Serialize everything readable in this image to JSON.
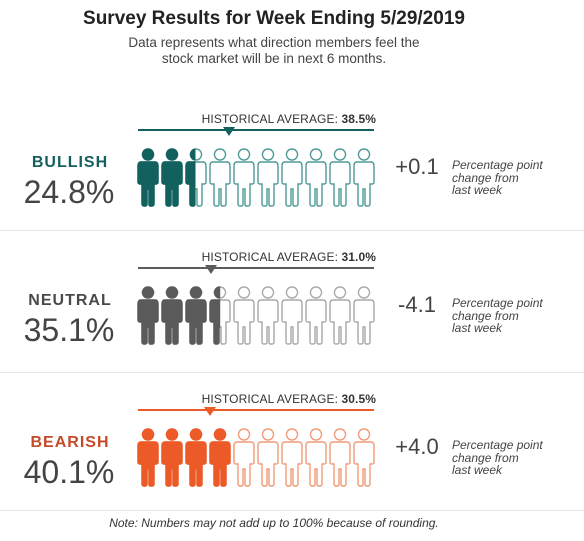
{
  "header": {
    "title": "Survey Results for Week Ending 5/29/2019",
    "subtitle_line1": "Data represents what direction members feel the",
    "subtitle_line2": "stock market will be in next 6 months."
  },
  "footnote": "Note: Numbers may not add up to 100% because of rounding.",
  "chart_data": {
    "type": "pictograph",
    "title": "Survey Results for Week Ending 5/29/2019",
    "icons_per_row": 10,
    "series": [
      {
        "name": "BULLISH",
        "value": 24.8,
        "value_label": "24.8%",
        "historical_average": 38.5,
        "historical_label": "HISTORICAL AVERAGE:",
        "historical_value_label": "38.5%",
        "change": 0.1,
        "change_label": "+0.1",
        "change_note": [
          "Percentage point",
          "change from",
          "last week"
        ],
        "color": "#13615f"
      },
      {
        "name": "NEUTRAL",
        "value": 35.1,
        "value_label": "35.1%",
        "historical_average": 31.0,
        "historical_label": "HISTORICAL AVERAGE:",
        "historical_value_label": "31.0%",
        "change": -4.1,
        "change_label": "-4.1",
        "change_note": [
          "Percentage point",
          "change from",
          "last week"
        ],
        "color": "#5b5b5b"
      },
      {
        "name": "BEARISH",
        "value": 40.1,
        "value_label": "40.1%",
        "historical_average": 30.5,
        "historical_label": "HISTORICAL AVERAGE:",
        "historical_value_label": "30.5%",
        "change": 4.0,
        "change_label": "+4.0",
        "change_note": [
          "Percentage point",
          "change from",
          "last week"
        ],
        "color": "#ec5b27"
      }
    ],
    "category_colors": {
      "BULLISH": "#13615f",
      "NEUTRAL": "#4a4a4a",
      "BEARISH": "#c44a29"
    },
    "outline_colors": {
      "BULLISH": "#4e9a97",
      "NEUTRAL": "#a8a8a8",
      "BEARISH": "#f09c78"
    }
  }
}
